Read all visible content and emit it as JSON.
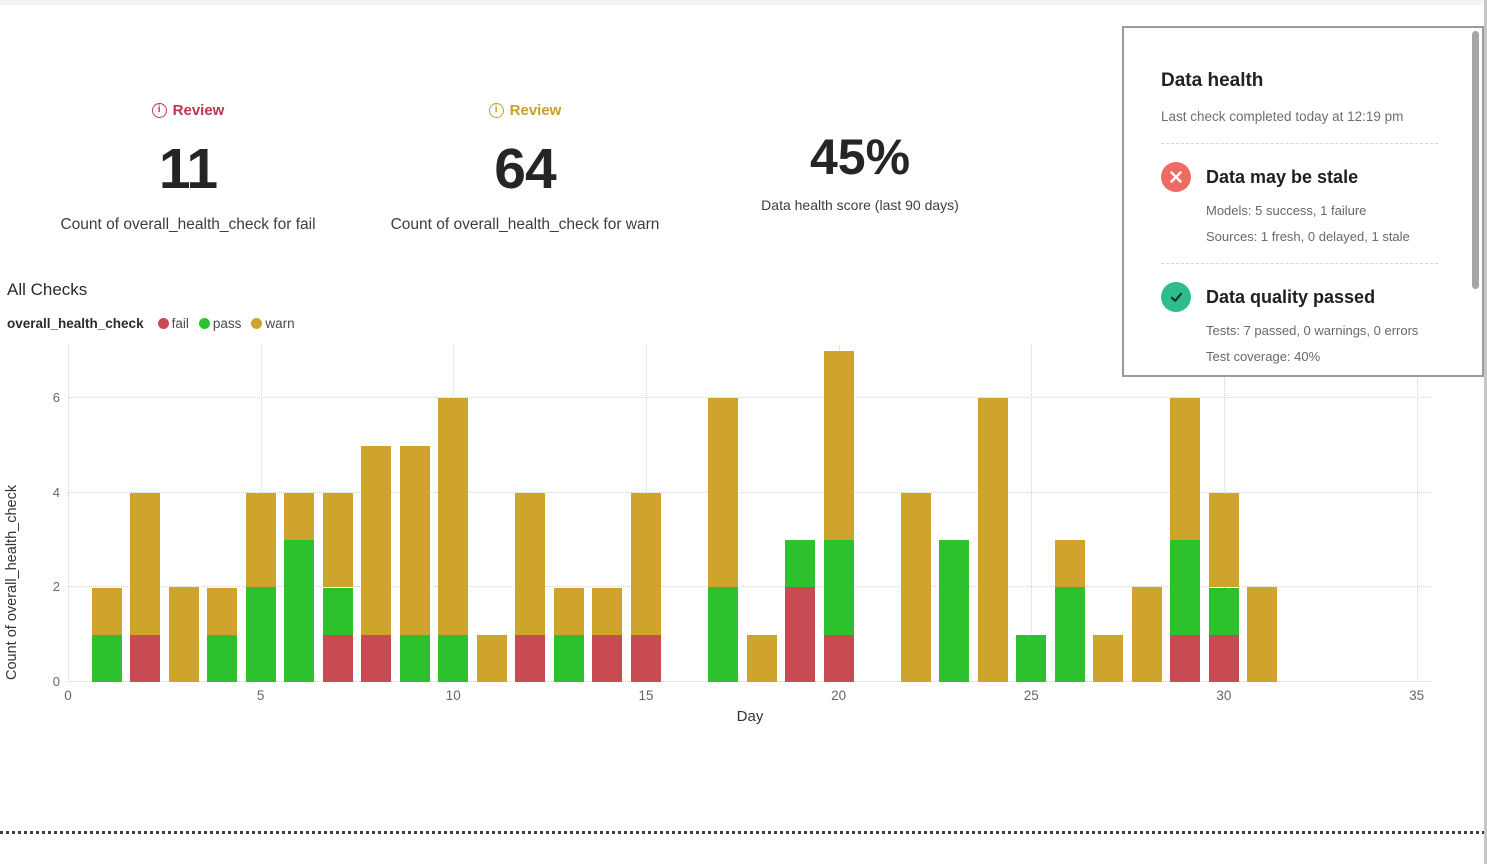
{
  "kpis": [
    {
      "badge": {
        "label": "Review",
        "color": "#c23350"
      },
      "value": "11",
      "label": "Count of overall_health_check for fail"
    },
    {
      "badge": {
        "label": "Review",
        "color": "#c7a122"
      },
      "value": "64",
      "label": "Count of overall_health_check for warn"
    },
    {
      "value": "45%",
      "label": "Data health score (last 90 days)"
    }
  ],
  "health_panel": {
    "title": "Data health",
    "subtitle": "Last check completed today at 12:19 pm",
    "sections": [
      {
        "icon": "x-circle",
        "icon_color": "#ee6a62",
        "status": "fail",
        "title": "Data may be stale",
        "lines": [
          "Models: 5 success, 1 failure",
          "Sources: 1 fresh, 0 delayed, 1 stale"
        ]
      },
      {
        "icon": "check-circle",
        "icon_color": "#2dbd8d",
        "status": "pass",
        "title": "Data quality passed",
        "lines": [
          "Tests: 7 passed, 0 warnings, 0 errors",
          "Test coverage: 40%"
        ]
      }
    ]
  },
  "chart_data": {
    "type": "bar",
    "stacked": true,
    "title": "All Checks",
    "legend_label": "overall_health_check",
    "legend_position": "top-left",
    "xlabel": "Day",
    "ylabel": "Count of overall_health_check",
    "grid": "dotted",
    "categories": [
      1,
      2,
      3,
      4,
      5,
      6,
      7,
      8,
      9,
      10,
      11,
      12,
      13,
      14,
      15,
      16,
      17,
      18,
      19,
      20,
      21,
      22,
      23,
      24,
      25,
      26,
      27,
      28,
      29,
      30,
      31
    ],
    "series": [
      {
        "name": "fail",
        "color": "#c84a52",
        "values": [
          0,
          1,
          0,
          0,
          0,
          0,
          1,
          1,
          0,
          0,
          0,
          1,
          0,
          1,
          1,
          0,
          0,
          0,
          2,
          1,
          0,
          0,
          0,
          0,
          0,
          0,
          0,
          0,
          1,
          1,
          0
        ]
      },
      {
        "name": "pass",
        "color": "#2dc22d",
        "values": [
          1,
          0,
          0,
          1,
          2,
          3,
          1,
          0,
          1,
          1,
          0,
          0,
          1,
          0,
          0,
          0,
          2,
          0,
          1,
          2,
          0,
          0,
          3,
          0,
          1,
          2,
          0,
          0,
          2,
          1,
          0
        ]
      },
      {
        "name": "warn",
        "color": "#cfa42c",
        "values": [
          1,
          3,
          2,
          1,
          2,
          1,
          2,
          4,
          4,
          5,
          1,
          3,
          1,
          1,
          3,
          0,
          4,
          1,
          0,
          4,
          0,
          4,
          0,
          6,
          0,
          1,
          1,
          2,
          3,
          2,
          2
        ]
      }
    ],
    "totals_note": "fail total 11, warn total 64",
    "xticks": [
      0,
      5,
      10,
      15,
      20,
      25,
      30,
      35
    ],
    "yticks": [
      0,
      2,
      4,
      6
    ],
    "xlim": [
      0,
      35.4
    ],
    "ylim": [
      0,
      7.13
    ]
  }
}
